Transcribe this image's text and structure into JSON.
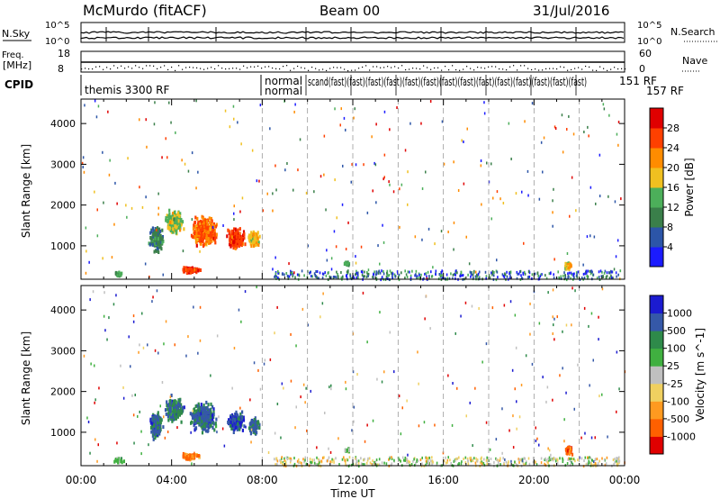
{
  "header": {
    "title": "McMurdo (fitACF)",
    "beam": "Beam 00",
    "date": "31/Jul/2016"
  },
  "aux_panels": {
    "nsky_label": "N.Sky",
    "nsearch_label": "N.Search",
    "nsky_ticks_left": [
      "10^5",
      "10^0"
    ],
    "nsky_ticks_right": [
      "10^5",
      "10^0"
    ],
    "freq_label_top": "Freq.",
    "freq_label_units": "[MHz]",
    "freq_ticks": [
      "18",
      "8"
    ],
    "nave_label": "Nave",
    "nave_ticks": [
      "60",
      "0"
    ],
    "cpid_label": "CPID"
  },
  "cpid_entries": {
    "first": "themis 3300 RF",
    "second": "normal",
    "third": "normal",
    "overlap": "scand(fast)(fast)(fast)(fast)(fast)(fast)(fast)(fast)(fast)(fast)(fast)(fast)(fast)(fast)",
    "right_a": "151 RF",
    "right_b": "157 RF"
  },
  "chart_data": [
    {
      "type": "heatmap",
      "name": "power",
      "ylabel": "Slant Range [km]",
      "yticks": [
        1000,
        2000,
        3000,
        4000
      ],
      "ylim": [
        180,
        4600
      ],
      "xlim_hours": [
        0,
        24
      ],
      "colorbar_label": "Power [dB]",
      "colorbar_ticks": [
        "4",
        "8",
        "12",
        "16",
        "20",
        "24",
        "28"
      ],
      "colors": [
        "#1b1bff",
        "#2c55a8",
        "#3a7f4a",
        "#4caf5a",
        "#f0c020",
        "#ff8c00",
        "#ff4000",
        "#e00000"
      ],
      "clusters": [
        {
          "t": 3.3,
          "r": 1200,
          "dt": 0.6,
          "dr": 600,
          "level": 0.3
        },
        {
          "t": 4.1,
          "r": 1600,
          "dt": 0.8,
          "dr": 600,
          "level": 0.5
        },
        {
          "t": 5.4,
          "r": 1400,
          "dt": 1.1,
          "dr": 700,
          "level": 0.75
        },
        {
          "t": 6.8,
          "r": 1200,
          "dt": 0.8,
          "dr": 500,
          "level": 0.85
        },
        {
          "t": 7.6,
          "r": 1200,
          "dt": 0.5,
          "dr": 400,
          "level": 0.6
        },
        {
          "t": 4.8,
          "r": 450,
          "dt": 0.9,
          "dr": 150,
          "level": 0.85
        },
        {
          "t": 1.6,
          "r": 350,
          "dt": 0.4,
          "dr": 120,
          "level": 0.4
        },
        {
          "t": 11.7,
          "r": 600,
          "dt": 0.3,
          "dr": 120,
          "level": 0.4
        },
        {
          "t": 21.5,
          "r": 550,
          "dt": 0.4,
          "dr": 200,
          "level": 0.55
        }
      ]
    },
    {
      "type": "heatmap",
      "name": "velocity",
      "ylabel": "Slant Range [km]",
      "yticks": [
        1000,
        2000,
        3000,
        4000
      ],
      "ylim": [
        180,
        4600
      ],
      "xlim_hours": [
        0,
        24
      ],
      "xlabel": "Time UT",
      "xtick_labels": [
        "00:00",
        "04:00",
        "08:00",
        "12:00",
        "16:00",
        "20:00",
        "00:00"
      ],
      "colorbar_label": "Velocity [m s^-1]",
      "colorbar_ticks": [
        "-1000",
        "-500",
        "-100",
        "-25",
        "25",
        "100",
        "500",
        "1000"
      ],
      "colors": [
        "#e00000",
        "#ff6000",
        "#ff9a20",
        "#f0d060",
        "#c0c0c0",
        "#40b040",
        "#2e8a4a",
        "#3558a8",
        "#1b1bd0"
      ],
      "clusters": [
        {
          "t": 3.3,
          "r": 1200,
          "dt": 0.6,
          "dr": 600,
          "level": 0.8
        },
        {
          "t": 4.1,
          "r": 1600,
          "dt": 0.8,
          "dr": 600,
          "level": 0.75
        },
        {
          "t": 5.4,
          "r": 1400,
          "dt": 1.1,
          "dr": 700,
          "level": 0.8
        },
        {
          "t": 6.8,
          "r": 1300,
          "dt": 0.8,
          "dr": 500,
          "level": 0.85
        },
        {
          "t": 7.6,
          "r": 1200,
          "dt": 0.5,
          "dr": 400,
          "level": 0.8
        },
        {
          "t": 4.8,
          "r": 450,
          "dt": 1.0,
          "dr": 150,
          "level": 0.25
        },
        {
          "t": 1.6,
          "r": 350,
          "dt": 0.5,
          "dr": 120,
          "level": 0.6
        },
        {
          "t": 11.7,
          "r": 600,
          "dt": 0.3,
          "dr": 120,
          "level": 0.6
        },
        {
          "t": 21.5,
          "r": 600,
          "dt": 0.4,
          "dr": 200,
          "level": 0.2
        }
      ]
    }
  ]
}
